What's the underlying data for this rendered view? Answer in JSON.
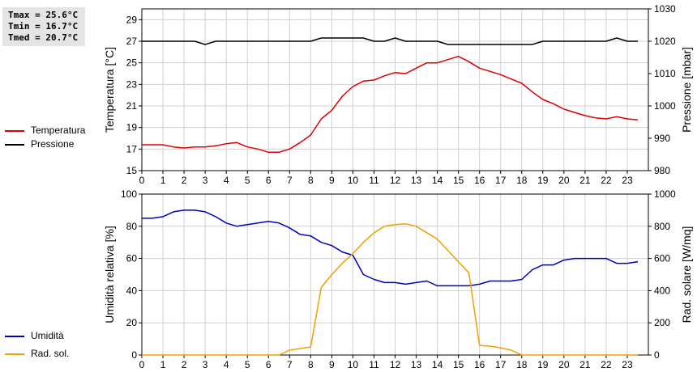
{
  "stats": {
    "tmax": "Tmax = 25.6°C",
    "tmin": "Tmin = 16.7°C",
    "tmed": "Tmed = 20.7°C"
  },
  "colors": {
    "temperature": "#dd0000",
    "pressure": "#000000",
    "humidity": "#0000bb",
    "radiation": "#f0a000",
    "grid": "#d0d0d0"
  },
  "legend": {
    "top": [
      {
        "label": "Temperatura",
        "color": "#dd0000"
      },
      {
        "label": "Pressione",
        "color": "#000000"
      }
    ],
    "bottom": [
      {
        "label": "Umidità",
        "color": "#0000bb"
      },
      {
        "label": "Rad. sol.",
        "color": "#f0a000"
      }
    ]
  },
  "chart_data": [
    {
      "type": "line",
      "ylabel_left": "Temperatura [°C]",
      "ylabel_right": "Pressione [mbar]",
      "xlim": [
        0,
        24
      ],
      "x_ticks": [
        "0",
        "1",
        "2",
        "3",
        "4",
        "5",
        "6",
        "7",
        "8",
        "9",
        "10",
        "11",
        "12",
        "13",
        "14",
        "15",
        "16",
        "17",
        "18",
        "19",
        "20",
        "21",
        "22",
        "23"
      ],
      "ylim_left": [
        15,
        30
      ],
      "y_ticks_left": [
        "15",
        "17",
        "19",
        "21",
        "23",
        "25",
        "27",
        "29"
      ],
      "ylim_right": [
        980,
        1030
      ],
      "y_ticks_right": [
        "980",
        "990",
        "1000",
        "1010",
        "1020",
        "1030"
      ],
      "grid": true,
      "series": [
        {
          "name": "Temperatura",
          "axis": "left",
          "color": "#dd0000",
          "x": [
            0,
            1,
            1.5,
            2,
            2.5,
            3,
            3.5,
            4,
            4.5,
            5,
            5.5,
            6,
            6.5,
            7,
            7.5,
            8,
            8.5,
            9,
            9.5,
            10,
            10.5,
            11,
            11.5,
            12,
            12.5,
            13,
            13.5,
            14,
            14.5,
            15,
            15.5,
            16,
            16.5,
            17,
            17.5,
            18,
            18.5,
            19,
            19.5,
            20,
            20.5,
            21,
            21.5,
            22,
            22.5,
            23,
            23.5
          ],
          "values": [
            17.4,
            17.4,
            17.2,
            17.1,
            17.2,
            17.2,
            17.3,
            17.5,
            17.6,
            17.2,
            17.0,
            16.7,
            16.7,
            17.0,
            17.6,
            18.3,
            19.8,
            20.6,
            21.9,
            22.8,
            23.3,
            23.4,
            23.8,
            24.1,
            24.0,
            24.5,
            25.0,
            25.0,
            25.3,
            25.6,
            25.1,
            24.5,
            24.2,
            23.9,
            23.5,
            23.1,
            22.3,
            21.6,
            21.2,
            20.7,
            20.4,
            20.1,
            19.9,
            19.8,
            20.0,
            19.8,
            19.7
          ]
        },
        {
          "name": "Pressione",
          "axis": "right",
          "color": "#000000",
          "x": [
            0,
            1,
            2,
            2.5,
            3,
            3.5,
            4,
            5,
            6,
            7,
            8,
            8.5,
            9,
            10,
            10.5,
            11,
            11.5,
            12,
            12.5,
            13,
            14,
            14.5,
            15,
            16,
            17,
            18,
            18.5,
            19,
            20,
            21,
            22,
            22.5,
            23,
            23.5
          ],
          "values": [
            1020,
            1020,
            1020,
            1020,
            1019,
            1020,
            1020,
            1020,
            1020,
            1020,
            1020,
            1021,
            1021,
            1021,
            1021,
            1020,
            1020,
            1021,
            1020,
            1020,
            1020,
            1019,
            1019,
            1019,
            1019,
            1019,
            1019,
            1020,
            1020,
            1020,
            1020,
            1021,
            1020,
            1020
          ]
        }
      ]
    },
    {
      "type": "line",
      "ylabel_left": "Umidità relativa [%]",
      "ylabel_right": "Rad. solare [W/mq]",
      "xlim": [
        0,
        24
      ],
      "x_ticks": [
        "0",
        "1",
        "2",
        "3",
        "4",
        "5",
        "6",
        "7",
        "8",
        "9",
        "10",
        "11",
        "12",
        "13",
        "14",
        "15",
        "16",
        "17",
        "18",
        "19",
        "20",
        "21",
        "22",
        "23"
      ],
      "ylim_left": [
        0,
        100
      ],
      "y_ticks_left": [
        "0",
        "20",
        "40",
        "60",
        "80",
        "100"
      ],
      "ylim_right": [
        0,
        1000
      ],
      "y_ticks_right": [
        "0",
        "200",
        "400",
        "600",
        "800",
        "1000"
      ],
      "grid": true,
      "series": [
        {
          "name": "Umidità",
          "axis": "left",
          "color": "#0000bb",
          "x": [
            0,
            0.5,
            1,
            1.5,
            2,
            2.5,
            3,
            3.5,
            4,
            4.5,
            5,
            5.5,
            6,
            6.5,
            7,
            7.5,
            8,
            8.5,
            9,
            9.5,
            10,
            10.5,
            11,
            11.5,
            12,
            12.5,
            13,
            13.5,
            14,
            14.5,
            15,
            15.5,
            16,
            16.5,
            17,
            17.5,
            18,
            18.5,
            19,
            19.5,
            20,
            20.5,
            21,
            21.5,
            22,
            22.5,
            23,
            23.5
          ],
          "values": [
            85,
            85,
            86,
            89,
            90,
            90,
            89,
            86,
            82,
            80,
            81,
            82,
            83,
            82,
            79,
            75,
            74,
            70,
            68,
            64,
            62,
            50,
            47,
            45,
            45,
            44,
            45,
            46,
            43,
            43,
            43,
            43,
            44,
            46,
            46,
            46,
            47,
            53,
            56,
            56,
            59,
            60,
            60,
            60,
            60,
            57,
            57,
            58
          ]
        },
        {
          "name": "Rad. sol.",
          "axis": "right",
          "color": "#f0a000",
          "x": [
            0,
            1,
            2,
            3,
            4,
            5,
            6,
            6.5,
            7,
            7.5,
            8,
            8.5,
            9,
            9.5,
            10,
            10.5,
            11,
            11.5,
            12,
            12.5,
            13,
            13.5,
            14,
            14.5,
            15,
            15.5,
            16,
            16.5,
            17,
            17.5,
            18,
            19,
            20,
            21,
            22,
            23,
            23.5
          ],
          "values": [
            0,
            0,
            0,
            0,
            0,
            0,
            0,
            0,
            30,
            40,
            50,
            420,
            500,
            570,
            630,
            700,
            760,
            800,
            810,
            815,
            800,
            760,
            720,
            650,
            580,
            510,
            60,
            55,
            45,
            30,
            0,
            0,
            0,
            0,
            0,
            0,
            0
          ]
        }
      ]
    }
  ]
}
